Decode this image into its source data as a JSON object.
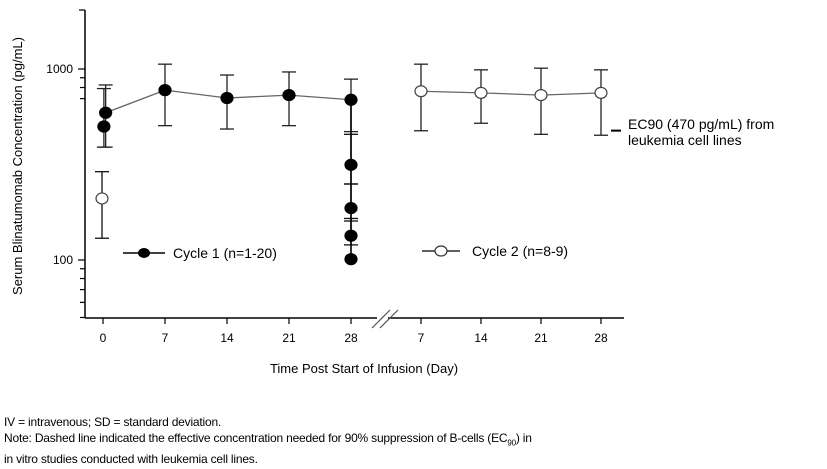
{
  "chart_data": {
    "type": "line",
    "title": "",
    "xlabel": "Time Post Start of Infusion (Day)",
    "ylabel": "Serum Blinatumomab Concentration (pg/mL)",
    "yscale": "log",
    "ylim": [
      50,
      2000
    ],
    "yticks_major": [
      100,
      1000
    ],
    "ytick_labels": [
      "100",
      "1000"
    ],
    "xaxis_break": true,
    "x_segments": [
      {
        "name": "Cycle 1",
        "ticks": [
          0,
          7,
          14,
          21,
          28
        ]
      },
      {
        "name": "Cycle 2",
        "ticks": [
          7,
          14,
          21,
          28
        ]
      }
    ],
    "xtick_labels": [
      "0",
      "7",
      "14",
      "21",
      "28",
      "7",
      "14",
      "21",
      "28"
    ],
    "legend_placement": "inside-bottom",
    "series": [
      {
        "name": "Cycle 1 (n=1-20)",
        "marker": "filled-circle",
        "segment": 0,
        "points": [
          {
            "x": 0.1,
            "y": 500,
            "yerr_low": 390,
            "yerr_high": 790
          },
          {
            "x": 0.3,
            "y": 590,
            "yerr_low": 390,
            "yerr_high": 825
          },
          {
            "x": 7,
            "y": 775,
            "yerr_low": 505,
            "yerr_high": 1060
          },
          {
            "x": 14,
            "y": 705,
            "yerr_low": 485,
            "yerr_high": 930
          },
          {
            "x": 21,
            "y": 730,
            "yerr_low": 505,
            "yerr_high": 965
          },
          {
            "x": 28,
            "y": 690,
            "yerr_low": 470,
            "yerr_high": 885
          }
        ],
        "unconnected_points": [
          {
            "x": 28,
            "y": 315,
            "yerr_low": 250,
            "yerr_high": 455
          },
          {
            "x": 28,
            "y": 187,
            "yerr_low": 160,
            "yerr_high": 250
          },
          {
            "x": 28,
            "y": 134,
            "yerr_low": 120,
            "yerr_high": 165
          },
          {
            "x": 28,
            "y": 101
          }
        ]
      },
      {
        "name": "Cycle 2 (n=8-9)",
        "marker": "open-circle",
        "segment": 1,
        "points": [
          {
            "x": 7,
            "y": 765,
            "yerr_low": 475,
            "yerr_high": 1060
          },
          {
            "x": 14,
            "y": 750,
            "yerr_low": 520,
            "yerr_high": 990
          },
          {
            "x": 21,
            "y": 730,
            "yerr_low": 455,
            "yerr_high": 1010
          },
          {
            "x": 28,
            "y": 750,
            "yerr_low": 450,
            "yerr_high": 990
          }
        ],
        "extra_points": [
          {
            "segment": 0,
            "x": 0,
            "y": 210,
            "yerr_low": 130,
            "yerr_high": 290
          }
        ]
      }
    ],
    "annotations": [
      {
        "text_line1": "EC90 (470 pg/mL) from",
        "text_line2": "leukemia cell lines",
        "y": 470
      }
    ]
  },
  "footnotes": {
    "line1": "IV = intravenous; SD = standard deviation.",
    "line2_pre": "Note:  Dashed line indicated the effective concentration needed for 90% suppression of B-cells (EC",
    "line2_sub": "90",
    "line2_post": ") in",
    "line3": "in vitro studies conducted with leukemia cell lines."
  }
}
